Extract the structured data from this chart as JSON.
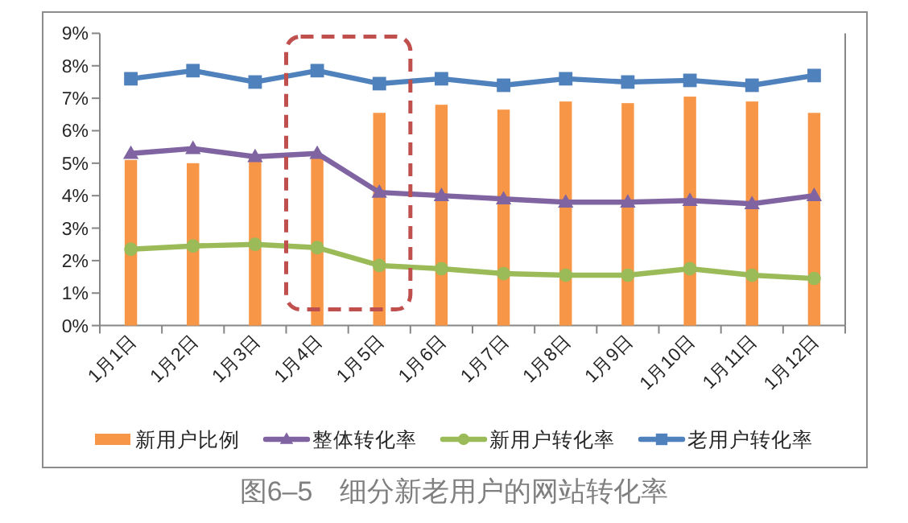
{
  "chart_data": {
    "type": "bar",
    "title": "图6–5　细分新老用户的网站转化率",
    "categories": [
      "1月1日",
      "1月2日",
      "1月3日",
      "1月4日",
      "1月5日",
      "1月6日",
      "1月7日",
      "1月8日",
      "1月9日",
      "1月10日",
      "1月11日",
      "1月12日"
    ],
    "series": [
      {
        "name": "新用户比例",
        "color": "#f79646",
        "values": [
          5.1,
          5.0,
          5.15,
          5.15,
          6.55,
          6.8,
          6.65,
          6.9,
          6.85,
          7.05,
          6.9,
          6.55
        ]
      },
      {
        "name": "整体转化率",
        "type": "line",
        "marker": "triangle",
        "color": "#8064a2",
        "values": [
          5.3,
          5.45,
          5.2,
          5.3,
          4.1,
          4.0,
          3.9,
          3.8,
          3.8,
          3.85,
          3.75,
          4.0
        ]
      },
      {
        "name": "新用户转化率",
        "type": "line",
        "marker": "circle",
        "color": "#9bbb59",
        "values": [
          2.35,
          2.45,
          2.5,
          2.4,
          1.85,
          1.75,
          1.6,
          1.55,
          1.55,
          1.75,
          1.55,
          1.45
        ]
      },
      {
        "name": "老用户转化率",
        "type": "line",
        "marker": "square",
        "color": "#4f81bd",
        "values": [
          7.6,
          7.85,
          7.5,
          7.85,
          7.45,
          7.6,
          7.4,
          7.6,
          7.5,
          7.55,
          7.4,
          7.7
        ]
      }
    ],
    "ylim": [
      0,
      9
    ],
    "yticks": [
      {
        "value": 0,
        "label": "0%"
      },
      {
        "value": 1,
        "label": "1%"
      },
      {
        "value": 2,
        "label": "2%"
      },
      {
        "value": 3,
        "label": "3%"
      },
      {
        "value": 4,
        "label": "4%"
      },
      {
        "value": 5,
        "label": "5%"
      },
      {
        "value": 6,
        "label": "6%"
      },
      {
        "value": 7,
        "label": "7%"
      },
      {
        "value": 8,
        "label": "8%"
      },
      {
        "value": 9,
        "label": "9%"
      }
    ],
    "legend": "bottom"
  }
}
